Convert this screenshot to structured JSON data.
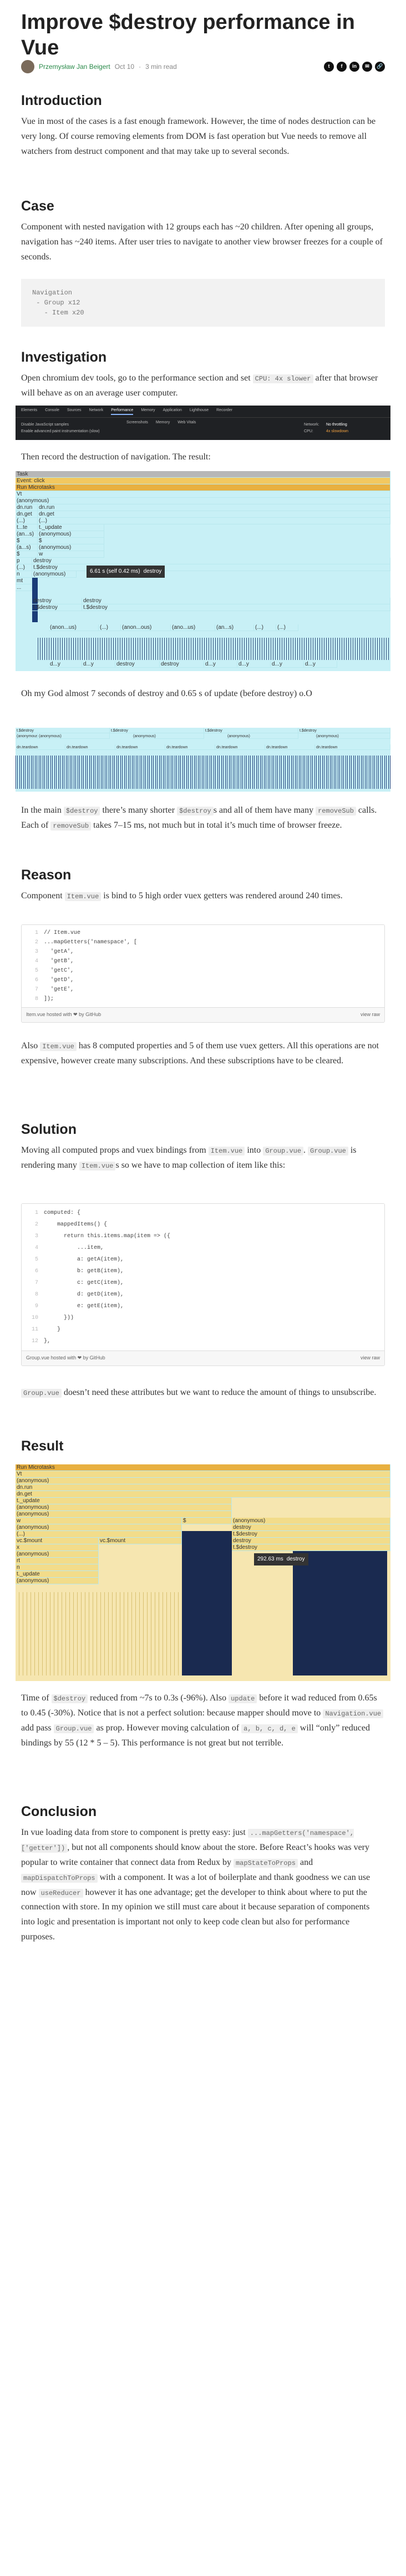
{
  "title": "Improve $destroy performance in Vue",
  "author": "Przemysław Jan Beigert",
  "date": "Oct 10",
  "read_time": "3 min read",
  "share_icons": [
    "twitter-icon",
    "facebook-icon",
    "linkedin-icon",
    "mail-icon",
    "link-icon"
  ],
  "intro": {
    "heading": "Introduction",
    "text": "Vue in most of the cases is a fast enough framework. However, the time of nodes destruction can be very long. Of course removing elements from DOM is fast operation but Vue needs to remove all watchers from destruct component and that may take up to several seconds."
  },
  "case": {
    "heading": "Case",
    "text": "Component with nested navigation with 12 groups each has ~20 children. After opening all groups, navigation has ~240 items. After user tries to navigate to another view browser freezes for a couple of seconds.",
    "code": "Navigation\n - Group x12\n   - Item x20"
  },
  "investigation": {
    "heading": "Investigation",
    "p1a": "Open chromium dev tools, go to the performance section and set",
    "p1code": "CPU: 4x slower",
    "p1b": "after that browser will behave as on an average user computer.",
    "p2": "Then record the destruction of navigation. The result:",
    "p3": "Oh my God almost 7 seconds of destroy and 0.65 s of update (before destroy) o.O",
    "p4a": "In the main",
    "p4c1": "$destroy",
    "p4b": "there’s many shorter",
    "p4c2": "$destroy",
    "p4c": "s and all of them have many",
    "p4c3": "removeSub",
    "p4d": "calls. Each of",
    "p4c4": "removeSub",
    "p4e": "takes 7–15 ms, not much but in total it’s much time of browser freeze."
  },
  "devtools": {
    "tabs": [
      "Elements",
      "Console",
      "Sources",
      "Network",
      "Performance",
      "Memory",
      "Application",
      "Lighthouse",
      "Recorder"
    ],
    "row2": [
      "Screenshots",
      "Memory",
      "Web Vitals"
    ],
    "row3": [
      "Disable JavaScript samples",
      "Enable advanced paint instrumentation (slow)"
    ],
    "right": [
      "Network:",
      "No throttling",
      "CPU:",
      "4x slowdown"
    ]
  },
  "flame1": {
    "rows": [
      [
        "Task"
      ],
      [
        "Event: click"
      ],
      [
        "Run Microtasks"
      ],
      [
        "Vt"
      ],
      [
        "(anonymous)"
      ],
      [
        "dn.run",
        "dn.run"
      ],
      [
        "dn.get",
        "dn.get"
      ],
      [
        "(...)",
        "(...)"
      ],
      [
        "t...te",
        "t._update"
      ],
      [
        "(an...s)",
        "(anonymous)"
      ],
      [
        "$",
        "$"
      ],
      [
        "(a...s)",
        "(anonymous)"
      ],
      [
        "$",
        "w"
      ],
      [
        "p",
        "destroy"
      ],
      [
        "(...)",
        "t.$destroy"
      ],
      [
        "n",
        "(anonymous)"
      ],
      [
        "mt"
      ],
      [
        "..."
      ],
      [
        "destroy",
        "destroy"
      ],
      [
        "t.$destroy",
        "t.$destroy"
      ]
    ],
    "tooltip_time": "6.61 s (self 0.42 ms)",
    "tooltip_name": "destroy",
    "bottom": [
      "(anon...us)",
      "(...)",
      "(anon...ous)",
      "(ano...us)",
      "(an...s)",
      "(...)",
      "(...)"
    ],
    "bottom2": [
      "d...y",
      "d...y",
      "destroy",
      "destroy",
      "d...y",
      "d...y",
      "d...y",
      "d...y"
    ]
  },
  "flame2": {
    "labels": [
      "t.$destroy",
      "t.$destroy",
      "t.$destroy",
      "t.$destroy",
      "(anonymous)",
      "(anonymous)",
      "(anonymous)",
      "(anonymous)",
      "(anonymous)"
    ],
    "small": [
      "dn.teardown",
      "dn.teardown",
      "dn.teardown",
      "dn.teardown",
      "dn.teardown",
      "dn.teardown",
      "dn.teardown"
    ]
  },
  "reason": {
    "heading": "Reason",
    "p1a": "Component",
    "p1code": "Item.vue",
    "p1b": "is bind to 5 high order vuex getters was rendered around 240 times.",
    "p2a": "Also",
    "p2code": "Item.vue",
    "p2b": "has 8 computed properties and 5 of them use vuex getters. All this operations are not expensive, however create many subscriptions. And these subscriptions have to be cleared."
  },
  "gist1": {
    "lines": [
      "// Item.vue",
      "...mapGetters('namespace', [",
      "  'getA',",
      "  'getB',",
      "  'getC',",
      "  'getD',",
      "  'getE',",
      "]);"
    ],
    "file": "Item.vue",
    "hosted": "hosted with ❤ by",
    "github": "GitHub",
    "view_raw": "view raw"
  },
  "solution": {
    "heading": "Solution",
    "p1a": "Moving all computed props and vuex bindings from",
    "p1c1": "Item.vue",
    "p1b": "into",
    "p1c2": "Group.vue",
    "p1c": ".",
    "p1c3": "Group.vue",
    "p1d": "is rendering many",
    "p1c4": "Item.vue",
    "p1e": "s so we have to map collection of item like this:",
    "p2code": "Group.vue",
    "p2": "doesn’t need these attributes but we want to reduce the amount of things to unsubscribe."
  },
  "gist2": {
    "lines": [
      "computed: {",
      "    mappedItems() {",
      "      return this.items.map(item => ({",
      "          ...item,",
      "          a: getA(item),",
      "          b: getB(item),",
      "          c: getC(item),",
      "          d: getD(item),",
      "          e: getE(item),",
      "      }))",
      "    }",
      "},"
    ],
    "file": "Group.vue",
    "hosted": "hosted with ❤ by",
    "github": "GitHub",
    "view_raw": "view raw"
  },
  "result": {
    "heading": "Result",
    "tooltip_time": "292.63 ms",
    "tooltip_name": "destroy",
    "labels": [
      "Run Microtasks",
      "Vt",
      "(anonymous)",
      "dn.run",
      "dn.get",
      "t._update",
      "(anonymous)",
      "(anonymous)",
      "w",
      "$",
      "(anonymous)",
      "destroy",
      "t.$destroy",
      "(anonymous)",
      "(...)",
      "vc.$mount",
      "vc.$mount",
      "x",
      "(anonymous)",
      "rt",
      "n",
      "t._update",
      "(anonymous)",
      "destroy",
      "t.$destroy"
    ],
    "p1a": "Time of",
    "p1c1": "$destroy",
    "p1b": "reduced from ~7s to 0.3s (-96%). Also",
    "p1c2": "update",
    "p1c": "before it wad reduced from 0.65s to 0.45 (-30%). Notice that is not a perfect solution: because mapper should move to",
    "p1c3": "Navigation.vue",
    "p1d": "add pass",
    "p1c4": "Group.vue",
    "p1e": "as prop. However moving calculation of",
    "p1c5": "a, b, c, d, e",
    "p1f": "will “only” reduced bindings by 55 (12 * 5 – 5). This performance is not great but not terrible."
  },
  "conclusion": {
    "heading": "Conclusion",
    "p1a": "In vue loading data from store to component is pretty easy: just",
    "p1c1": "...mapGetters('namespace', ['getter'])",
    "p1b": ", but not all components should know about the store. Before React’s hooks was very popular to write container that connect data from Redux by",
    "p1c2": "mapStateToProps",
    "p1c": "and",
    "p1c3": "mapDispatchToProps",
    "p1d": "with a component. It was a lot of boilerplate and thank goodness we can use now",
    "p1c4": "useReducer",
    "p1e": "however it has one advantage; get the developer to think about where to put the connection with store. In my opinion we still must care about it because separation of components into logic and presentation is important not only to keep code clean but also for performance purposes."
  },
  "colors": {
    "accent": "#2a8a4a",
    "flame_bg": "#c8f0f6",
    "flame_task": "#b7b7b7",
    "flame_event": "#f2c860",
    "flame_micro": "#e8b040",
    "selected": "#1a3c78",
    "tooltip": "#333333"
  }
}
